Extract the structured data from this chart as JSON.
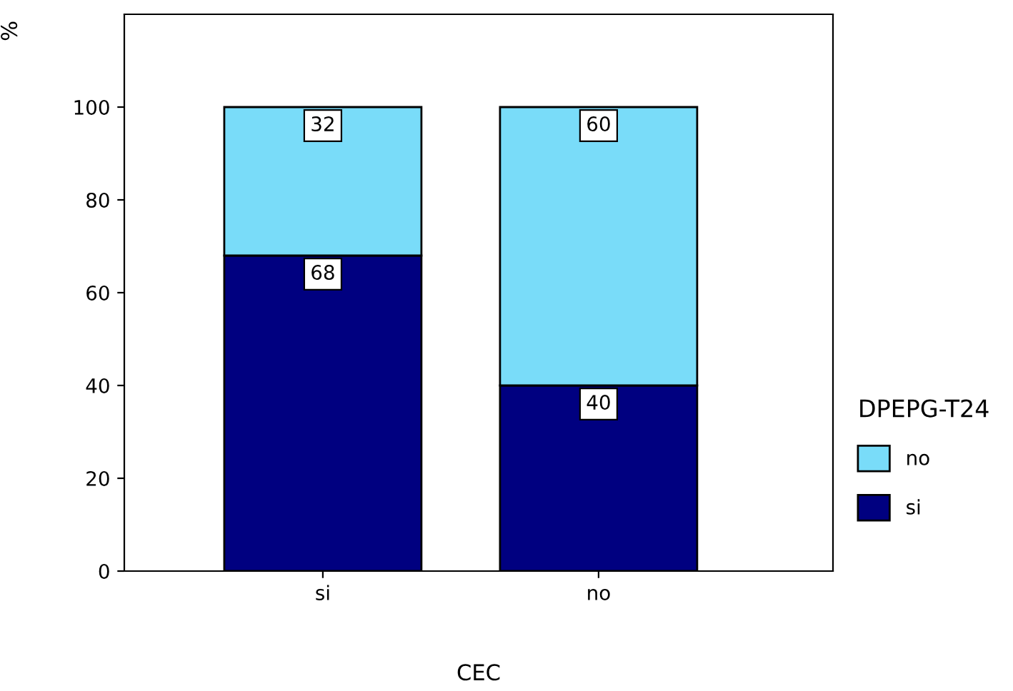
{
  "chart_data": {
    "type": "bar",
    "stacked": true,
    "categories": [
      "si",
      "no"
    ],
    "series": [
      {
        "name": "si",
        "color": "#000080",
        "values": [
          68,
          40
        ]
      },
      {
        "name": "no",
        "color": "#79dcf9",
        "values": [
          32,
          60
        ]
      }
    ],
    "xlabel": "CEC",
    "ylabel": "%",
    "legend_title": "DPEPG-T24",
    "legend": "right",
    "ylim": [
      0,
      120
    ],
    "yticks": [
      0,
      20,
      40,
      60,
      80,
      100
    ],
    "data_labels": true,
    "grid": false
  }
}
